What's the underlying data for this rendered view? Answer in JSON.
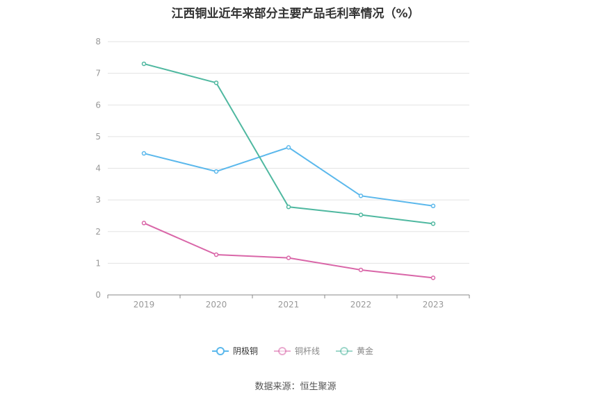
{
  "chart_data": {
    "type": "line",
    "title": "江西铜业近年来部分主要产品毛利率情况（%）",
    "categories": [
      "2019",
      "2020",
      "2021",
      "2022",
      "2023"
    ],
    "ylim": [
      0,
      8
    ],
    "yticks": [
      "0",
      "1",
      "2",
      "3",
      "4",
      "5",
      "6",
      "7",
      "8"
    ],
    "grid": true,
    "legend_position": "bottom",
    "series": [
      {
        "name": "阴极铜",
        "color": "#5bb8ec",
        "values": [
          4.47,
          3.9,
          4.66,
          3.13,
          2.81
        ]
      },
      {
        "name": "铜杆线",
        "color": "#d966a8",
        "values": [
          2.27,
          1.27,
          1.17,
          0.79,
          0.54
        ]
      },
      {
        "name": "黄金",
        "color": "#4fb8a0",
        "values": [
          7.3,
          6.7,
          2.78,
          2.53,
          2.25
        ]
      }
    ]
  },
  "source": "数据来源：恒生聚源"
}
